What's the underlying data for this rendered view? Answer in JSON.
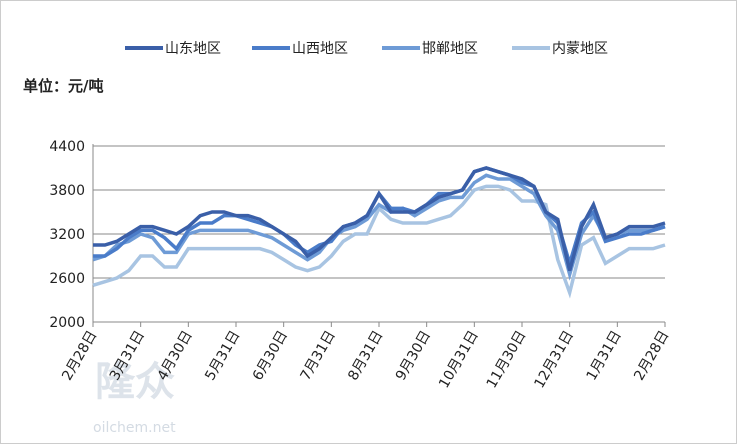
{
  "chart_data": {
    "type": "line",
    "unit_label": "单位：元/吨",
    "watermark": {
      "brand": "隆众",
      "site": "oilchem.net"
    },
    "categories": [
      "2月28日",
      null,
      null,
      null,
      "3月31日",
      null,
      null,
      null,
      "4月30日",
      null,
      null,
      null,
      "5月31日",
      null,
      null,
      null,
      "6月30日",
      null,
      null,
      null,
      "7月31日",
      null,
      null,
      null,
      "8月31日",
      null,
      null,
      null,
      "9月30日",
      null,
      null,
      null,
      "10月31日",
      null,
      null,
      null,
      "11月30日",
      null,
      null,
      null,
      "12月31日",
      null,
      null,
      null,
      "1月31日",
      null,
      null,
      null,
      "2月28日"
    ],
    "series": [
      {
        "name": "山东地区",
        "color": "#3a5fa8",
        "values": [
          3050,
          3050,
          3100,
          3200,
          3300,
          3300,
          3250,
          3200,
          3300,
          3450,
          3500,
          3500,
          3450,
          3450,
          3400,
          3300,
          3200,
          3100,
          2900,
          3000,
          3150,
          3300,
          3350,
          3450,
          3750,
          3500,
          3500,
          3500,
          3600,
          3700,
          3750,
          3800,
          4050,
          4100,
          4050,
          4000,
          3950,
          3850,
          3500,
          3400,
          2700,
          3300,
          3600,
          3150,
          3200,
          3300,
          3300,
          3300,
          3350
        ]
      },
      {
        "name": "山西地区",
        "color": "#4a7cc9",
        "values": [
          2900,
          2900,
          3000,
          3150,
          3250,
          3250,
          3150,
          3000,
          3250,
          3350,
          3350,
          3450,
          3450,
          3400,
          3350,
          3300,
          3200,
          3050,
          2950,
          3050,
          3100,
          3300,
          3350,
          3450,
          3750,
          3550,
          3550,
          3500,
          3600,
          3750,
          3750,
          3800,
          4050,
          4100,
          4050,
          4000,
          3900,
          3850,
          3500,
          3350,
          2800,
          3350,
          3500,
          3100,
          3150,
          3200,
          3200,
          3250,
          3300
        ]
      },
      {
        "name": "邯郸地区",
        "color": "#6e9bd6",
        "values": [
          2850,
          2900,
          3050,
          3100,
          3200,
          3150,
          2950,
          2950,
          3200,
          3250,
          3250,
          3250,
          3250,
          3250,
          3200,
          3150,
          3050,
          2950,
          2850,
          2950,
          3150,
          3250,
          3300,
          3400,
          3600,
          3500,
          3550,
          3450,
          3550,
          3650,
          3700,
          3700,
          3900,
          4000,
          3950,
          3950,
          3850,
          3750,
          3450,
          3250,
          2650,
          3200,
          3450,
          3150,
          3200,
          3250,
          3250,
          3250,
          3300
        ]
      },
      {
        "name": "内蒙地区",
        "color": "#a8c4e2",
        "values": [
          2500,
          2550,
          2600,
          2700,
          2900,
          2900,
          2750,
          2750,
          3000,
          3000,
          3000,
          3000,
          3000,
          3000,
          3000,
          2950,
          2850,
          2750,
          2700,
          2750,
          2900,
          3100,
          3200,
          3200,
          3550,
          3400,
          3350,
          3350,
          3350,
          3400,
          3450,
          3600,
          3800,
          3850,
          3850,
          3800,
          3650,
          3650,
          3600,
          2850,
          2400,
          3050,
          3150,
          2800,
          2900,
          3000,
          3000,
          3000,
          3050
        ]
      }
    ],
    "ylim": [
      2000,
      4400
    ],
    "yticks": [
      2000,
      2600,
      3200,
      3800,
      4400
    ],
    "grid": true
  }
}
